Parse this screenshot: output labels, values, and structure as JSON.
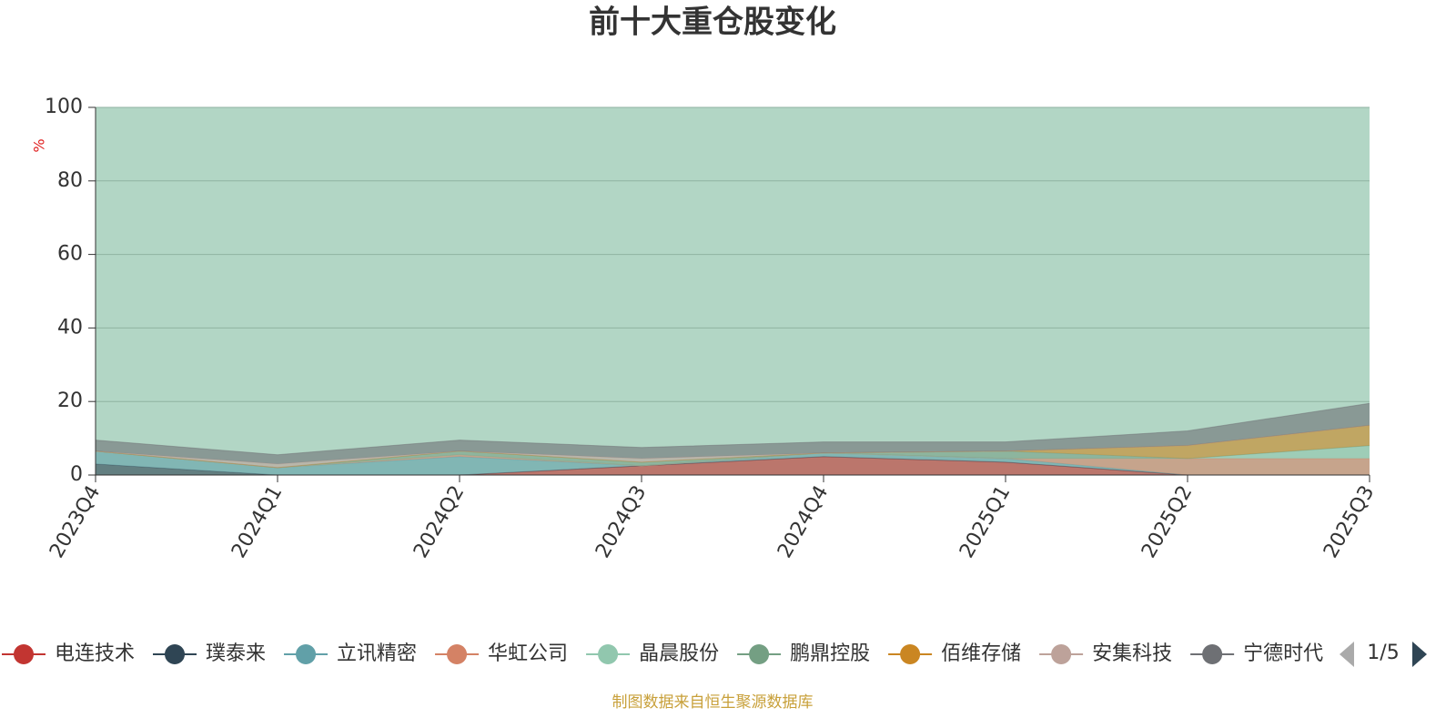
{
  "chart_data": {
    "type": "area",
    "title": "前十大重仓股变化",
    "y_label": "%",
    "categories": [
      "2023Q4",
      "2024Q1",
      "2024Q2",
      "2024Q3",
      "2024Q4",
      "2025Q1",
      "2025Q2",
      "2025Q3"
    ],
    "stacked": true,
    "series": [
      {
        "name": "电连技术",
        "color": "#c23531",
        "values": [
          0,
          0,
          0,
          2.5,
          5,
          3.5,
          0,
          0
        ]
      },
      {
        "name": "璞泰来",
        "color": "#2f4554",
        "values": [
          3,
          0,
          0,
          0,
          0,
          0,
          0,
          0
        ]
      },
      {
        "name": "立讯精密",
        "color": "#61a0a8",
        "values": [
          3.5,
          2,
          5,
          0,
          1,
          1,
          0,
          0
        ]
      },
      {
        "name": "华虹公司",
        "color": "#d48265",
        "values": [
          0,
          0,
          0.5,
          0,
          0,
          0,
          4.5,
          4.5
        ]
      },
      {
        "name": "晶晨股份",
        "color": "#91c7ae",
        "values": [
          0,
          0,
          0,
          0,
          0,
          0,
          0,
          3.5
        ]
      },
      {
        "name": "鹏鼎控股",
        "color": "#749f83",
        "values": [
          0,
          0,
          1,
          1,
          0,
          2,
          0,
          0
        ]
      },
      {
        "name": "佰维存储",
        "color": "#ca8622",
        "values": [
          0,
          0,
          0,
          0,
          0,
          0,
          3.5,
          5.5
        ]
      },
      {
        "name": "安集科技",
        "color": "#bda29a",
        "values": [
          0,
          1,
          0,
          1,
          0,
          0,
          0,
          0
        ]
      },
      {
        "name": "宁德时代",
        "color": "#6e7074",
        "values": [
          3,
          2.5,
          3,
          3,
          3,
          2.5,
          4,
          6
        ]
      }
    ],
    "ylim": [
      0,
      100
    ],
    "yticks": [
      0,
      20,
      40,
      60,
      80,
      100
    ],
    "grid": true,
    "legend_page": "1/5",
    "source": "制图数据来自恒生聚源数据库"
  }
}
